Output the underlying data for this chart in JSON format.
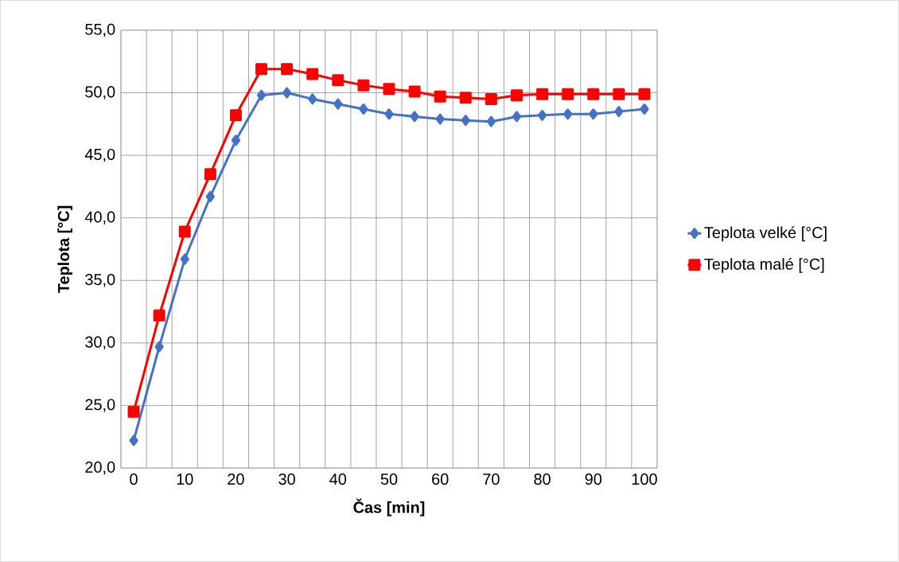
{
  "chart_data": {
    "type": "line",
    "xlabel": "Čas [min]",
    "ylabel": "Teplota [°C]",
    "categories": [
      "0",
      null,
      "10",
      null,
      "20",
      null,
      "30",
      null,
      "40",
      null,
      "50",
      null,
      "60",
      null,
      "70",
      null,
      "80",
      null,
      "90",
      null,
      "100"
    ],
    "series": [
      {
        "name": "Teplota velké [°C]",
        "color": "#4472c4",
        "marker": "diamond",
        "values": [
          22.2,
          29.7,
          36.7,
          41.7,
          46.2,
          49.8,
          50.0,
          49.5,
          49.1,
          48.7,
          48.3,
          48.1,
          47.9,
          47.8,
          47.7,
          48.1,
          48.2,
          48.3,
          48.3,
          48.5,
          48.7
        ]
      },
      {
        "name": "Teplota malé [°C]",
        "color": "#ff0000",
        "marker": "square",
        "values": [
          24.5,
          32.2,
          38.9,
          43.5,
          48.2,
          51.9,
          51.9,
          51.5,
          51.0,
          50.6,
          50.3,
          50.1,
          49.7,
          49.6,
          49.5,
          49.8,
          49.9,
          49.9,
          49.9,
          49.9,
          49.9
        ]
      }
    ],
    "ylim": [
      20,
      55
    ],
    "yticks": [
      {
        "value": 20,
        "label": "20,0"
      },
      {
        "value": 25,
        "label": "25,0"
      },
      {
        "value": 30,
        "label": "30,0"
      },
      {
        "value": 35,
        "label": "35,0"
      },
      {
        "value": 40,
        "label": "40,0"
      },
      {
        "value": 45,
        "label": "45,0"
      },
      {
        "value": 50,
        "label": "50,0"
      },
      {
        "value": 55,
        "label": "55,0"
      }
    ],
    "grid": true,
    "legend": "right",
    "line_style": "solid"
  }
}
